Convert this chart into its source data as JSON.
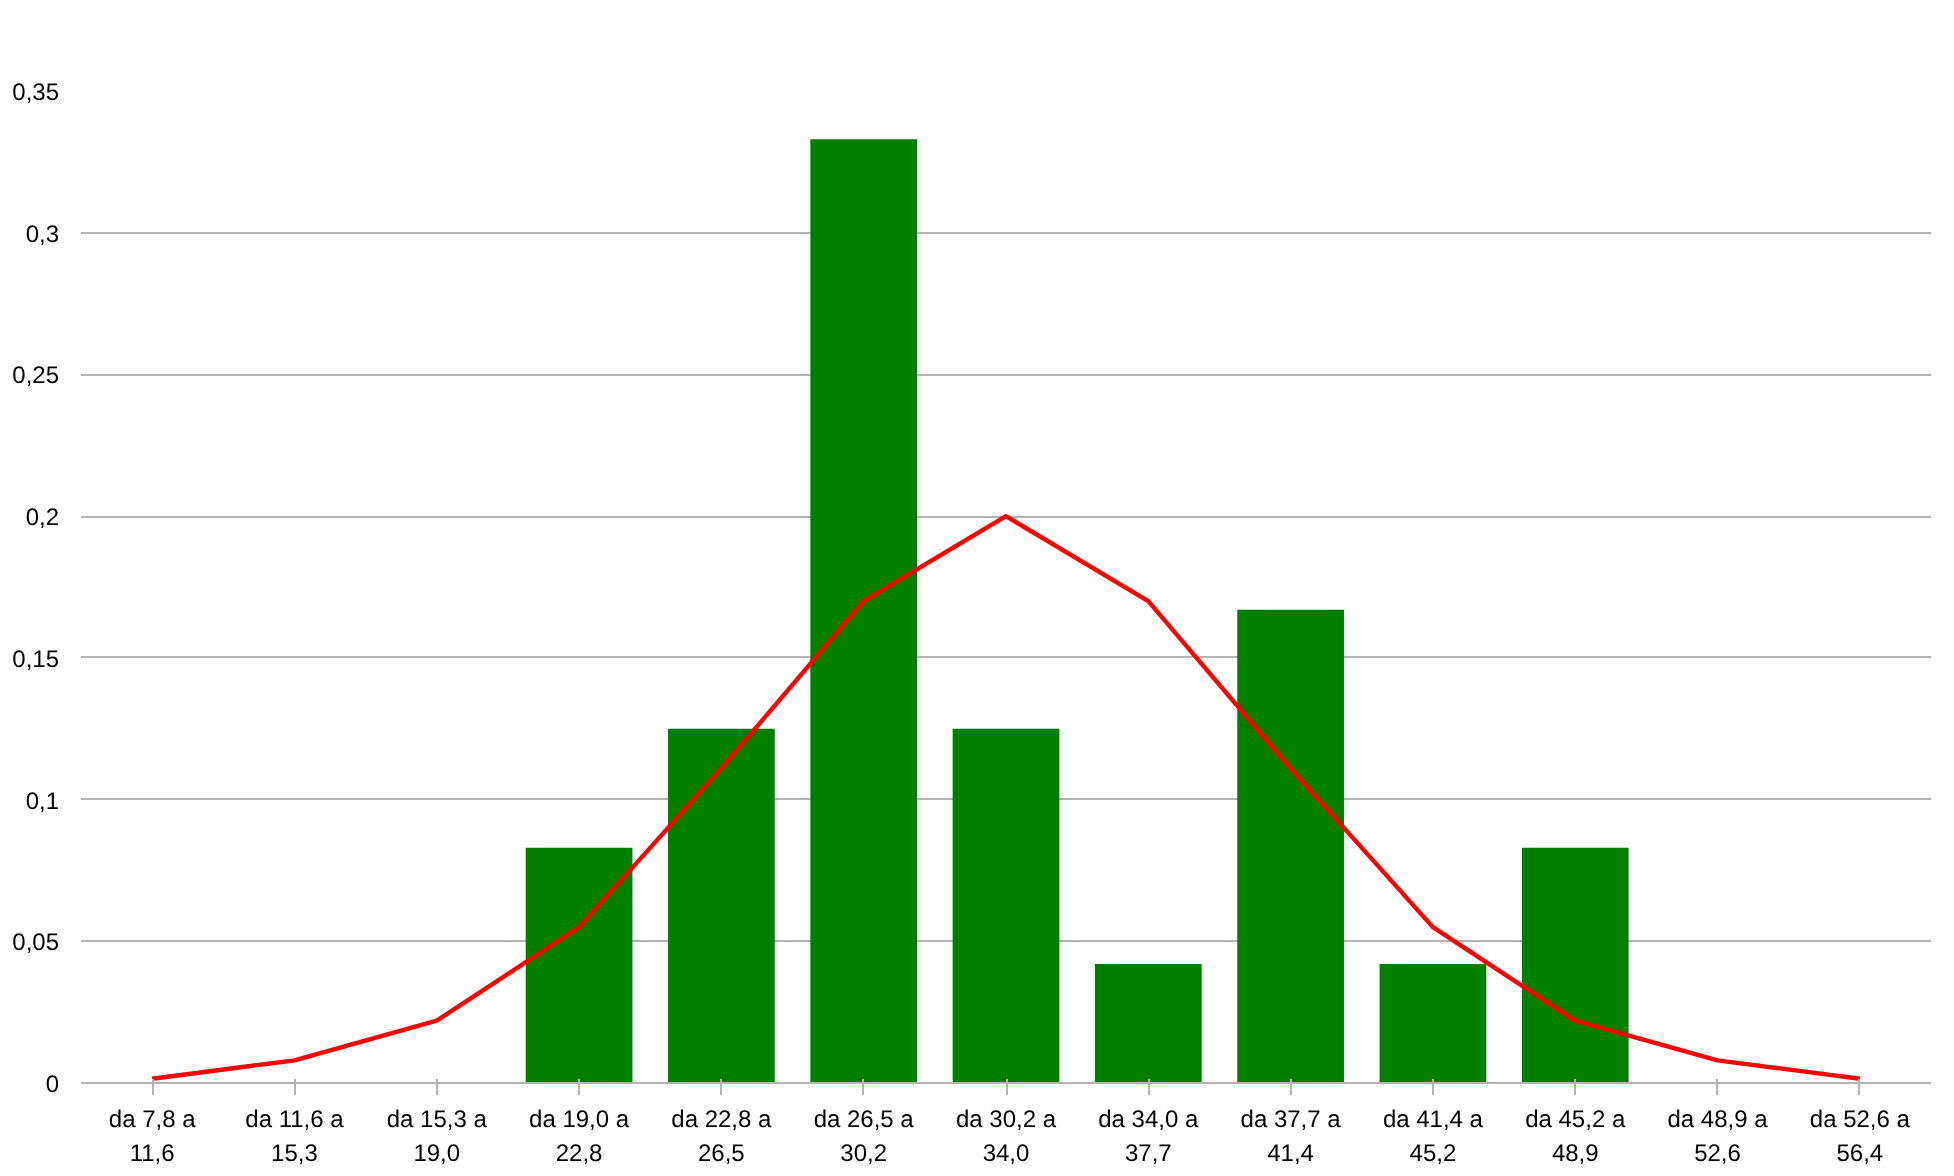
{
  "chart_data": {
    "type": "bar",
    "categories": [
      "da 7,8 a 11,6",
      "da 11,6 a 15,3",
      "da 15,3 a 19,0",
      "da 19,0 a 22,8",
      "da 22,8 a 26,5",
      "da 26,5 a 30,2",
      "da 30,2 a 34,0",
      "da 34,0 a 37,7",
      "da 37,7 a 41,4",
      "da 41,4 a 45,2",
      "da 45,2 a 48,9",
      "da 48,9 a 52,6",
      "da 52,6 a 56,4"
    ],
    "series": [
      {
        "color": "#007f00",
        "values": [
          0,
          0,
          0,
          0.083,
          0.125,
          0.333,
          0.125,
          0.042,
          0.167,
          0.042,
          0.083,
          0,
          0
        ]
      },
      {
        "type": "line",
        "color": "#ff0000",
        "values": [
          0.0015,
          0.008,
          0.022,
          0.055,
          0.111,
          0.17,
          0.2,
          0.17,
          0.111,
          0.055,
          0.022,
          0.008,
          0.0015
        ]
      }
    ],
    "ylim": [
      0,
      0.35
    ],
    "yticks": [
      0,
      {
        "value": 0.05,
        "label": "0,05"
      },
      {
        "value": 0.1,
        "label": "0,1"
      },
      {
        "value": 0.15,
        "label": "0,15"
      },
      {
        "value": 0.2,
        "label": "0,2"
      },
      {
        "value": 0.25,
        "label": "0,25"
      },
      {
        "value": 0.3,
        "label": "0,3"
      },
      {
        "value": 0.35,
        "label": "0,35"
      }
    ],
    "grid": "y",
    "line_style": "solid"
  }
}
